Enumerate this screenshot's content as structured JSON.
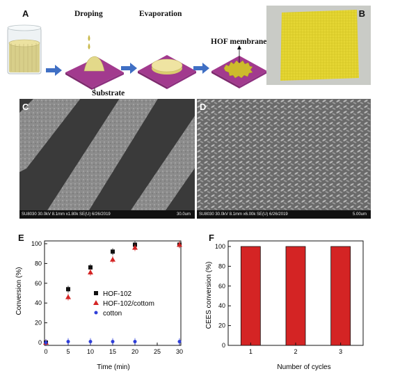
{
  "panels": {
    "a": "A",
    "b": "B",
    "c": "C",
    "d": "D",
    "e": "E",
    "f": "F"
  },
  "schematic": {
    "step_droping": "Droping",
    "step_evaporation": "Evaporation",
    "membrane_label": "HOF membrane",
    "substrate_label": "Substrate"
  },
  "colors": {
    "substrate": "#a23a8e",
    "liquid": "#e8dc8c",
    "arrow": "#3f6fc4",
    "membrane_photo": "#eadb3a",
    "bar": "#d42424"
  },
  "sem_c": {
    "info": "SU8030 30.0kV 8.1mm x1.80k SE(U) 6/26/2019",
    "scale": "30.0um"
  },
  "sem_d": {
    "info": "SU8030 30.0kV 8.1mm x6.00k SE(U) 6/26/2019",
    "scale": "5.00um"
  },
  "chart_data": [
    {
      "type": "scatter",
      "xlabel": "Time (min)",
      "ylabel": "Conversion (%)",
      "xlim": [
        0,
        30
      ],
      "ylim": [
        0,
        100
      ],
      "xticks": [
        0,
        5,
        10,
        15,
        20,
        25,
        30
      ],
      "yticks": [
        0,
        20,
        40,
        60,
        80,
        100
      ],
      "legend_position": "center-right",
      "series": [
        {
          "name": "HOF-102",
          "marker": "square",
          "color": "#111111",
          "x": [
            0,
            5,
            10,
            15,
            20,
            30
          ],
          "y": [
            0,
            54,
            76,
            92,
            99,
            99
          ]
        },
        {
          "name": "HOF-102/cottom",
          "marker": "triangle",
          "color": "#d42424",
          "x": [
            0,
            5,
            10,
            15,
            20,
            30
          ],
          "y": [
            0,
            46,
            71,
            84,
            96,
            99
          ]
        },
        {
          "name": "cotton",
          "marker": "circle",
          "color": "#2f3fd8",
          "x": [
            0,
            5,
            10,
            15,
            20,
            30
          ],
          "y": [
            0,
            1,
            1,
            1,
            1,
            1
          ]
        }
      ]
    },
    {
      "type": "bar",
      "xlabel": "Number of cycles",
      "ylabel": "CEES conversion (%)",
      "categories": [
        "1",
        "2",
        "3"
      ],
      "values": [
        100,
        100,
        100
      ],
      "ylim": [
        0,
        100
      ],
      "yticks": [
        0,
        20,
        40,
        60,
        80,
        100
      ]
    }
  ]
}
